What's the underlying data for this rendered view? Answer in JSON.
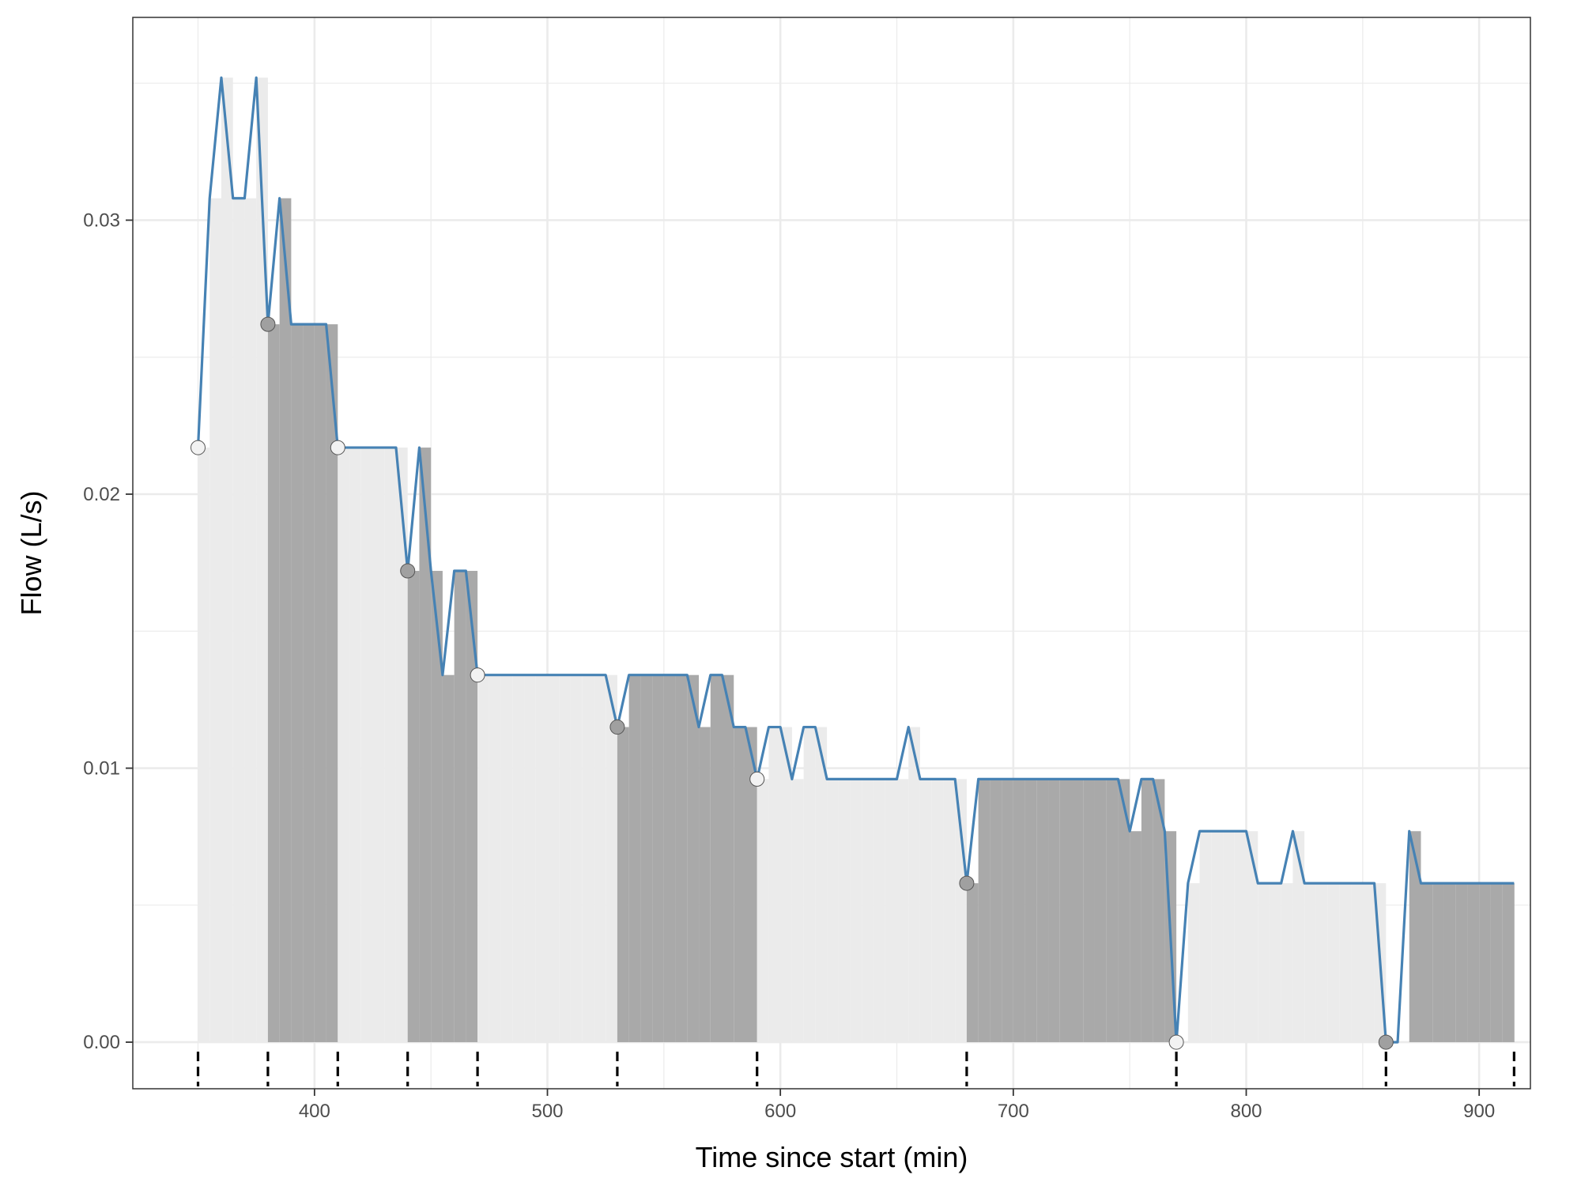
{
  "chart_data": {
    "type": "line",
    "title": "",
    "xlabel": "Time since start (min)",
    "ylabel": "Flow (L/s)",
    "xlim": [
      322,
      922
    ],
    "ylim": [
      -0.0017,
      0.0374
    ],
    "x_ticks": [
      400,
      500,
      600,
      700,
      800,
      900
    ],
    "x_tick_labels": [
      "400",
      "500",
      "600",
      "700",
      "800",
      "900"
    ],
    "y_ticks": [
      0,
      0.01,
      0.02,
      0.03
    ],
    "y_tick_labels": [
      "0.00",
      "0.01",
      "0.02",
      "0.03"
    ],
    "grid": true,
    "legend": "none",
    "colors": {
      "line": "#4682b4",
      "bar_light": "#ebebeb",
      "bar_dark": "#a9a9a9",
      "grid": "#ebebeb",
      "marker_light": "#f2f2f2",
      "marker_dark": "#a0a0a0",
      "panel_border": "#333333"
    },
    "bin_width": 5,
    "series": [
      {
        "x": [
          350,
          355,
          360,
          365,
          370,
          375,
          380,
          385,
          390,
          395,
          400,
          405,
          410,
          415,
          420,
          425,
          430,
          435,
          440,
          445,
          450,
          455,
          460,
          465,
          470,
          475,
          480,
          485,
          490,
          495,
          500,
          505,
          510,
          515,
          520,
          525,
          530,
          535,
          540,
          545,
          550,
          555,
          560,
          565,
          570,
          575,
          580,
          585,
          590,
          595,
          600,
          605,
          610,
          615,
          620,
          625,
          630,
          635,
          640,
          645,
          650,
          655,
          660,
          665,
          670,
          675,
          680,
          685,
          690,
          695,
          700,
          705,
          710,
          715,
          720,
          725,
          730,
          735,
          740,
          745,
          750,
          755,
          760,
          765,
          770,
          775,
          780,
          785,
          790,
          795,
          800,
          805,
          810,
          815,
          820,
          825,
          830,
          835,
          840,
          845,
          850,
          855,
          860,
          865,
          870,
          875,
          880,
          885,
          890,
          895,
          900,
          905,
          910,
          915
        ],
        "values": [
          0.0217,
          0.0308,
          0.0352,
          0.0308,
          0.0308,
          0.0352,
          0.0262,
          0.0308,
          0.0262,
          0.0262,
          0.0262,
          0.0262,
          0.0217,
          0.0217,
          0.0217,
          0.0217,
          0.0217,
          0.0217,
          0.0172,
          0.0217,
          0.0172,
          0.0134,
          0.0172,
          0.0172,
          0.0134,
          0.0134,
          0.0134,
          0.0134,
          0.0134,
          0.0134,
          0.0134,
          0.0134,
          0.0134,
          0.0134,
          0.0134,
          0.0134,
          0.0115,
          0.0134,
          0.0134,
          0.0134,
          0.0134,
          0.0134,
          0.0134,
          0.0115,
          0.0134,
          0.0134,
          0.0115,
          0.0115,
          0.0096,
          0.0115,
          0.0115,
          0.0096,
          0.0115,
          0.0115,
          0.0096,
          0.0096,
          0.0096,
          0.0096,
          0.0096,
          0.0096,
          0.0096,
          0.0115,
          0.0096,
          0.0096,
          0.0096,
          0.0096,
          0.0058,
          0.0096,
          0.0096,
          0.0096,
          0.0096,
          0.0096,
          0.0096,
          0.0096,
          0.0096,
          0.0096,
          0.0096,
          0.0096,
          0.0096,
          0.0096,
          0.0077,
          0.0096,
          0.0096,
          0.0077,
          0.0,
          0.0058,
          0.0077,
          0.0077,
          0.0077,
          0.0077,
          0.0077,
          0.0058,
          0.0058,
          0.0058,
          0.0077,
          0.0058,
          0.0058,
          0.0058,
          0.0058,
          0.0058,
          0.0058,
          0.0058,
          0.0,
          0.0,
          0.0077,
          0.0058,
          0.0058,
          0.0058,
          0.0058,
          0.0058,
          0.0058,
          0.0058,
          0.0058,
          0.0058
        ]
      }
    ],
    "segments": [
      {
        "start": 350,
        "end": 380,
        "shade": "light"
      },
      {
        "start": 380,
        "end": 410,
        "shade": "dark"
      },
      {
        "start": 410,
        "end": 440,
        "shade": "light"
      },
      {
        "start": 440,
        "end": 470,
        "shade": "dark"
      },
      {
        "start": 470,
        "end": 530,
        "shade": "light"
      },
      {
        "start": 530,
        "end": 590,
        "shade": "dark"
      },
      {
        "start": 590,
        "end": 680,
        "shade": "light"
      },
      {
        "start": 680,
        "end": 770,
        "shade": "dark"
      },
      {
        "start": 770,
        "end": 860,
        "shade": "light"
      },
      {
        "start": 860,
        "end": 915,
        "shade": "dark"
      }
    ],
    "breakpoints": [
      350,
      380,
      410,
      440,
      470,
      530,
      590,
      680,
      770,
      860,
      915
    ],
    "markers": [
      {
        "x": 350,
        "y": 0.0217,
        "shade": "light"
      },
      {
        "x": 380,
        "y": 0.0262,
        "shade": "dark"
      },
      {
        "x": 410,
        "y": 0.0217,
        "shade": "light"
      },
      {
        "x": 440,
        "y": 0.0172,
        "shade": "dark"
      },
      {
        "x": 470,
        "y": 0.0134,
        "shade": "light"
      },
      {
        "x": 530,
        "y": 0.0115,
        "shade": "dark"
      },
      {
        "x": 590,
        "y": 0.0096,
        "shade": "light"
      },
      {
        "x": 680,
        "y": 0.0058,
        "shade": "dark"
      },
      {
        "x": 770,
        "y": 0.0,
        "shade": "light"
      },
      {
        "x": 860,
        "y": 0.0,
        "shade": "dark"
      }
    ]
  }
}
